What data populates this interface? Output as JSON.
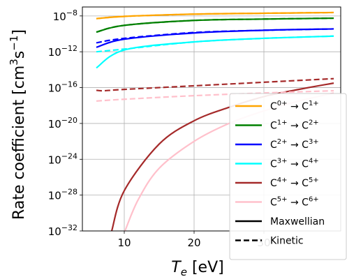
{
  "chart_data": {
    "type": "line",
    "title": "",
    "xlabel": "T_e [eV]",
    "ylabel": "Rate coefficient [cm^3 s^-1]",
    "xlim": [
      4,
      41
    ],
    "ylim": [
      1e-32,
      1e-07
    ],
    "yscale": "log",
    "grid": true,
    "x_ticks": [
      10,
      20,
      30
    ],
    "y_ticks": [
      {
        "value": 1e-08,
        "base": "10",
        "exp": "−8"
      },
      {
        "value": 1e-12,
        "base": "10",
        "exp": "−12"
      },
      {
        "value": 1e-16,
        "base": "10",
        "exp": "−16"
      },
      {
        "value": 1e-20,
        "base": "10",
        "exp": "−20"
      },
      {
        "value": 1e-24,
        "base": "10",
        "exp": "−24"
      },
      {
        "value": 1e-28,
        "base": "10",
        "exp": "−28"
      },
      {
        "value": 1e-32,
        "base": "10",
        "exp": "−32"
      }
    ],
    "legend_position": "right",
    "series": [
      {
        "name": "C0+ → C1+",
        "color": "#ffa500",
        "label": {
          "a": "C",
          "a_sup": "0+",
          "b": "C",
          "b_sup": "1+"
        },
        "maxwellian": [
          [
            6,
            -8.3
          ],
          [
            10,
            -8.05
          ],
          [
            20,
            -7.8
          ],
          [
            30,
            -7.7
          ],
          [
            40,
            -7.62
          ]
        ],
        "kinetic": [
          [
            6,
            -8.3
          ],
          [
            10,
            -8.05
          ],
          [
            20,
            -7.8
          ],
          [
            30,
            -7.7
          ],
          [
            40,
            -7.62
          ]
        ]
      },
      {
        "name": "C1+ → C2+",
        "color": "#008000",
        "label": {
          "a": "C",
          "a_sup": "1+",
          "b": "C",
          "b_sup": "2+"
        },
        "maxwellian": [
          [
            6,
            -9.8
          ],
          [
            10,
            -9.05
          ],
          [
            20,
            -8.5
          ],
          [
            30,
            -8.35
          ],
          [
            40,
            -8.25
          ]
        ],
        "kinetic": [
          [
            6,
            -9.8
          ],
          [
            10,
            -9.05
          ],
          [
            20,
            -8.5
          ],
          [
            30,
            -8.35
          ],
          [
            40,
            -8.25
          ]
        ]
      },
      {
        "name": "C2+ → C3+",
        "color": "#0000ff",
        "label": {
          "a": "C",
          "a_sup": "2+",
          "b": "C",
          "b_sup": "3+"
        },
        "maxwellian": [
          [
            6,
            -11.5
          ],
          [
            10,
            -10.6
          ],
          [
            20,
            -9.9
          ],
          [
            30,
            -9.6
          ],
          [
            40,
            -9.45
          ]
        ],
        "kinetic": [
          [
            6,
            -11.0
          ],
          [
            10,
            -10.5
          ],
          [
            20,
            -9.85
          ],
          [
            30,
            -9.6
          ],
          [
            40,
            -9.45
          ]
        ]
      },
      {
        "name": "C3+ → C4+",
        "color": "#00ffff",
        "label": {
          "a": "C",
          "a_sup": "3+",
          "b": "C",
          "b_sup": "4+"
        },
        "maxwellian": [
          [
            6,
            -13.8
          ],
          [
            10,
            -11.8
          ],
          [
            20,
            -10.9
          ],
          [
            30,
            -10.5
          ],
          [
            40,
            -10.25
          ]
        ],
        "kinetic": [
          [
            6,
            -12.0
          ],
          [
            10,
            -11.7
          ],
          [
            20,
            -10.9
          ],
          [
            30,
            -10.5
          ],
          [
            40,
            -10.25
          ]
        ]
      },
      {
        "name": "C4+ → C5+",
        "color": "#a52a2a",
        "label": {
          "a": "C",
          "a_sup": "4+",
          "b": "C",
          "b_sup": "5+"
        },
        "maxwellian": [
          [
            8.2,
            -32
          ],
          [
            10,
            -27.5
          ],
          [
            15,
            -22.3
          ],
          [
            20,
            -19.7
          ],
          [
            25,
            -18.2
          ],
          [
            30,
            -17.0
          ],
          [
            35,
            -16.2
          ],
          [
            40,
            -15.5
          ]
        ],
        "kinetic": [
          [
            6,
            -16.3
          ],
          [
            7,
            -16.35
          ],
          [
            10,
            -16.2
          ],
          [
            20,
            -15.8
          ],
          [
            30,
            -15.4
          ],
          [
            40,
            -15.0
          ]
        ]
      },
      {
        "name": "C5+ → C6+",
        "color": "#ffc0cb",
        "label": {
          "a": "C",
          "a_sup": "5+",
          "b": "C",
          "b_sup": "6+"
        },
        "maxwellian": [
          [
            10.1,
            -32
          ],
          [
            12,
            -28.5
          ],
          [
            15,
            -25.0
          ],
          [
            20,
            -22.0
          ],
          [
            25,
            -20.0
          ],
          [
            30,
            -18.6
          ],
          [
            35,
            -17.5
          ],
          [
            40,
            -16.6
          ]
        ],
        "kinetic": [
          [
            6,
            -17.5
          ],
          [
            10,
            -17.3
          ],
          [
            20,
            -16.9
          ],
          [
            30,
            -16.6
          ],
          [
            40,
            -16.35
          ]
        ]
      }
    ],
    "legend_linestyles": [
      {
        "name": "Maxwellian",
        "style": "solid"
      },
      {
        "name": "Kinetic",
        "style": "dashed"
      }
    ]
  }
}
